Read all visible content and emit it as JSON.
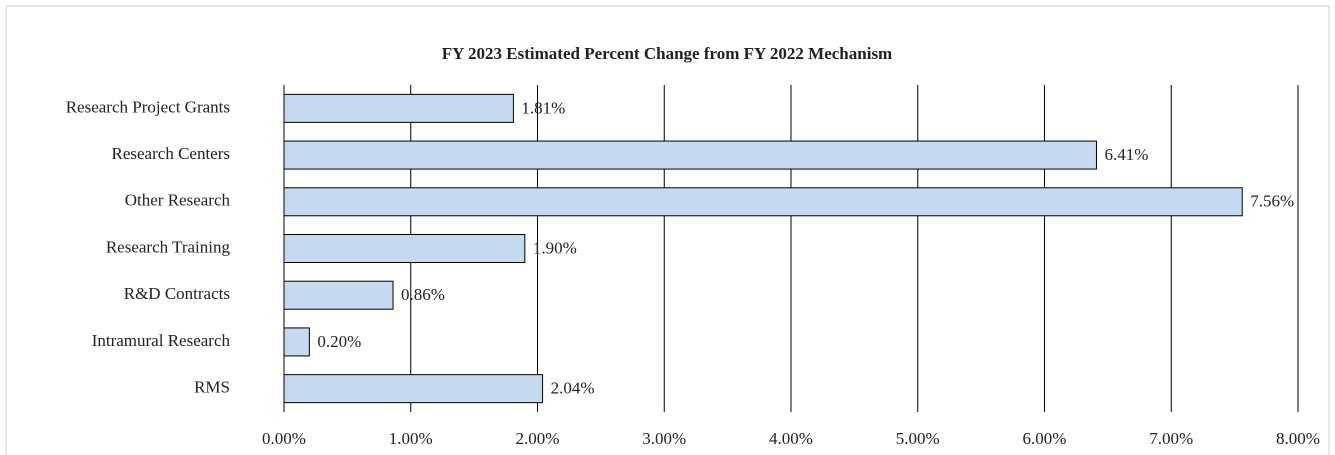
{
  "chart_data": {
    "type": "bar",
    "orientation": "horizontal",
    "title": "FY 2023 Estimated Percent Change from FY 2022 Mechanism",
    "categories": [
      "Research Project Grants",
      "Research Centers",
      "Other Research",
      "Research Training",
      "R&D Contracts",
      "Intramural Research",
      "RMS"
    ],
    "values": [
      1.81,
      6.41,
      7.56,
      1.9,
      0.86,
      0.2,
      2.04
    ],
    "value_labels": [
      "1.81%",
      "6.41%",
      "7.56%",
      "1.90%",
      "0.86%",
      "0.20%",
      "2.04%"
    ],
    "color": "#c5d9f1",
    "xlim": [
      0,
      8
    ],
    "xticks": [
      {
        "value": 0,
        "label": "0.00%"
      },
      {
        "value": 1,
        "label": "1.00%"
      },
      {
        "value": 2,
        "label": "2.00%"
      },
      {
        "value": 3,
        "label": "3.00%"
      },
      {
        "value": 4,
        "label": "4.00%"
      },
      {
        "value": 5,
        "label": "5.00%"
      },
      {
        "value": 6,
        "label": "6.00%"
      },
      {
        "value": 7,
        "label": "7.00%"
      },
      {
        "value": 8,
        "label": "8.00%"
      }
    ],
    "grid": true
  }
}
